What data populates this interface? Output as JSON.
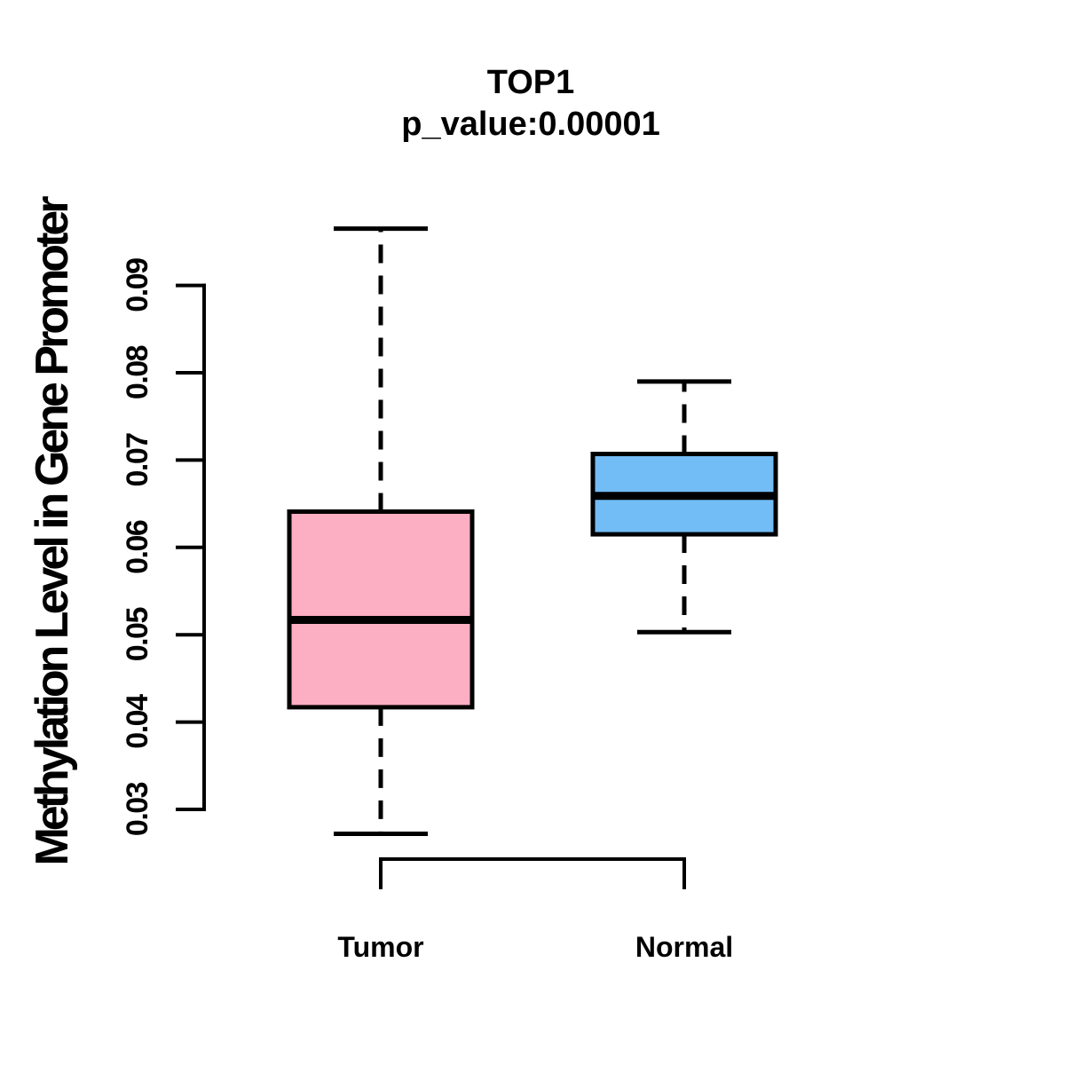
{
  "chart_data": {
    "type": "boxplot",
    "title": "TOP1",
    "subtitle": "p_value:0.00001",
    "ylabel": "Methylation Level in Gene Promoter",
    "xlabel": "",
    "categories": [
      "Tumor",
      "Normal"
    ],
    "series": [
      {
        "name": "Tumor",
        "fill_color": "#FCAEC3",
        "whisker_low": 0.0272,
        "q1": 0.0417,
        "median": 0.0517,
        "q3": 0.0641,
        "whisker_high": 0.0965
      },
      {
        "name": "Normal",
        "fill_color": "#73BDF6",
        "whisker_low": 0.0503,
        "q1": 0.0615,
        "median": 0.0659,
        "q3": 0.0707,
        "whisker_high": 0.079
      }
    ],
    "yticks": [
      0.03,
      0.04,
      0.05,
      0.06,
      0.07,
      0.08,
      0.09
    ],
    "ytick_labels": [
      "0.03",
      "0.04",
      "0.05",
      "0.06",
      "0.07",
      "0.08",
      "0.09"
    ],
    "ylim": [
      0.0265,
      0.097
    ],
    "grid": false,
    "legend": "none",
    "line_color": "#000000",
    "background_color": "#FFFFFF"
  }
}
